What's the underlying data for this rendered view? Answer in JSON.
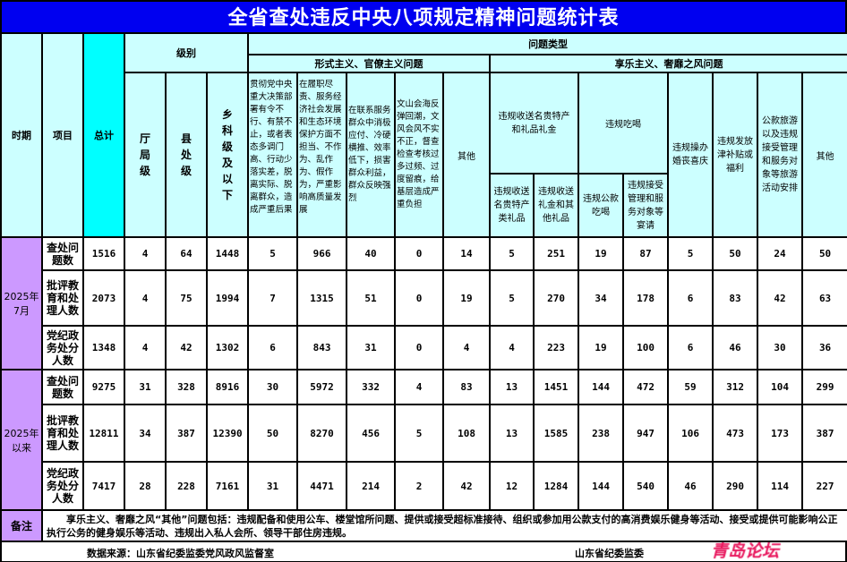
{
  "title": "全省查处违反中央八项规定精神问题统计表",
  "header": {
    "period": "时期",
    "item": "项目",
    "total": "总计",
    "level": "级别",
    "levels": [
      "厅局级",
      "县处级",
      "乡科级及以下"
    ],
    "problem_type": "问题类型",
    "formalism": "形式主义、官僚主义问题",
    "formalism_cols": [
      "贯彻党中央重大决策部署有令不行、有禁不止，或者表态多调门高、行动少落实差，脱离实际、脱离群众，造成严重后果",
      "在履职尽责、服务经济社会发展和生态环境保护方面不担当、不作为、乱作为、假作为，严重影响高质量发展",
      "在联系服务群众中消极应付、冷硬横推、效率低下，损害群众利益，群众反映强烈",
      "文山会海反弹回潮，文风会风不实不正，督查检查考核过多过频、过度留痕，给基层造成严重负担",
      "其他"
    ],
    "hedonism": "享乐主义、奢靡之风问题",
    "gift_group": "违规收送名贵特产和礼品礼金",
    "gift_cols": [
      "违规收送名贵特产类礼品",
      "违规收送礼金和其他礼品"
    ],
    "dining_group": "违规吃喝",
    "dining_cols": [
      "违规公款吃喝",
      "违规接受管理和服务对象等宴请"
    ],
    "other_cols": [
      "违规操办婚丧喜庆",
      "违规发放津补贴或福利",
      "公款旅游以及违规接受管理和服务对象等旅游活动安排",
      "其他"
    ]
  },
  "periods": [
    {
      "label": "2025年7月",
      "rows": [
        {
          "item": "查处问题数",
          "values": [
            "1516",
            "4",
            "64",
            "1448",
            "5",
            "966",
            "40",
            "0",
            "14",
            "5",
            "251",
            "19",
            "87",
            "5",
            "50",
            "24",
            "50"
          ]
        },
        {
          "item": "批评教育和处理人数",
          "values": [
            "2073",
            "4",
            "75",
            "1994",
            "7",
            "1315",
            "51",
            "0",
            "19",
            "5",
            "270",
            "34",
            "178",
            "6",
            "83",
            "42",
            "63"
          ]
        },
        {
          "item": "党纪政务处分人数",
          "values": [
            "1348",
            "4",
            "42",
            "1302",
            "6",
            "843",
            "31",
            "0",
            "4",
            "4",
            "223",
            "19",
            "100",
            "6",
            "46",
            "30",
            "36"
          ]
        }
      ]
    },
    {
      "label": "2025年以来",
      "rows": [
        {
          "item": "查处问题数",
          "values": [
            "9275",
            "31",
            "328",
            "8916",
            "30",
            "5972",
            "332",
            "4",
            "83",
            "13",
            "1451",
            "144",
            "472",
            "59",
            "312",
            "104",
            "299"
          ]
        },
        {
          "item": "批评教育和处理人数",
          "values": [
            "12811",
            "34",
            "387",
            "12390",
            "50",
            "8270",
            "456",
            "5",
            "108",
            "13",
            "1585",
            "238",
            "947",
            "106",
            "473",
            "173",
            "387"
          ]
        },
        {
          "item": "党纪政务处分人数",
          "values": [
            "7417",
            "28",
            "228",
            "7161",
            "31",
            "4471",
            "214",
            "2",
            "42",
            "12",
            "1284",
            "144",
            "540",
            "46",
            "290",
            "114",
            "227"
          ]
        }
      ]
    }
  ],
  "note": {
    "label": "备注",
    "text": "享乐主义、奢靡之风“其他”问题包括：违规配备和使用公车、楼堂馆所问题、提供或接受超标准接待、组织或参加用公款支付的高消费娱乐健身等活动、接受或提供可能影响公正执行公务的健身娱乐等活动、违规出入私人会所、领导干部住房违规。"
  },
  "footer": {
    "source": "数据来源：山东省纪委监委党风政风监督室",
    "signature": "山东省纪委监委"
  },
  "watermark": "青岛论坛",
  "colors": {
    "title_bg": "#0000f0",
    "header_bg": "#ccffff",
    "total_bg": "#00ffff",
    "period_bg": "#cc99ff",
    "watermark": "#e8175d"
  }
}
